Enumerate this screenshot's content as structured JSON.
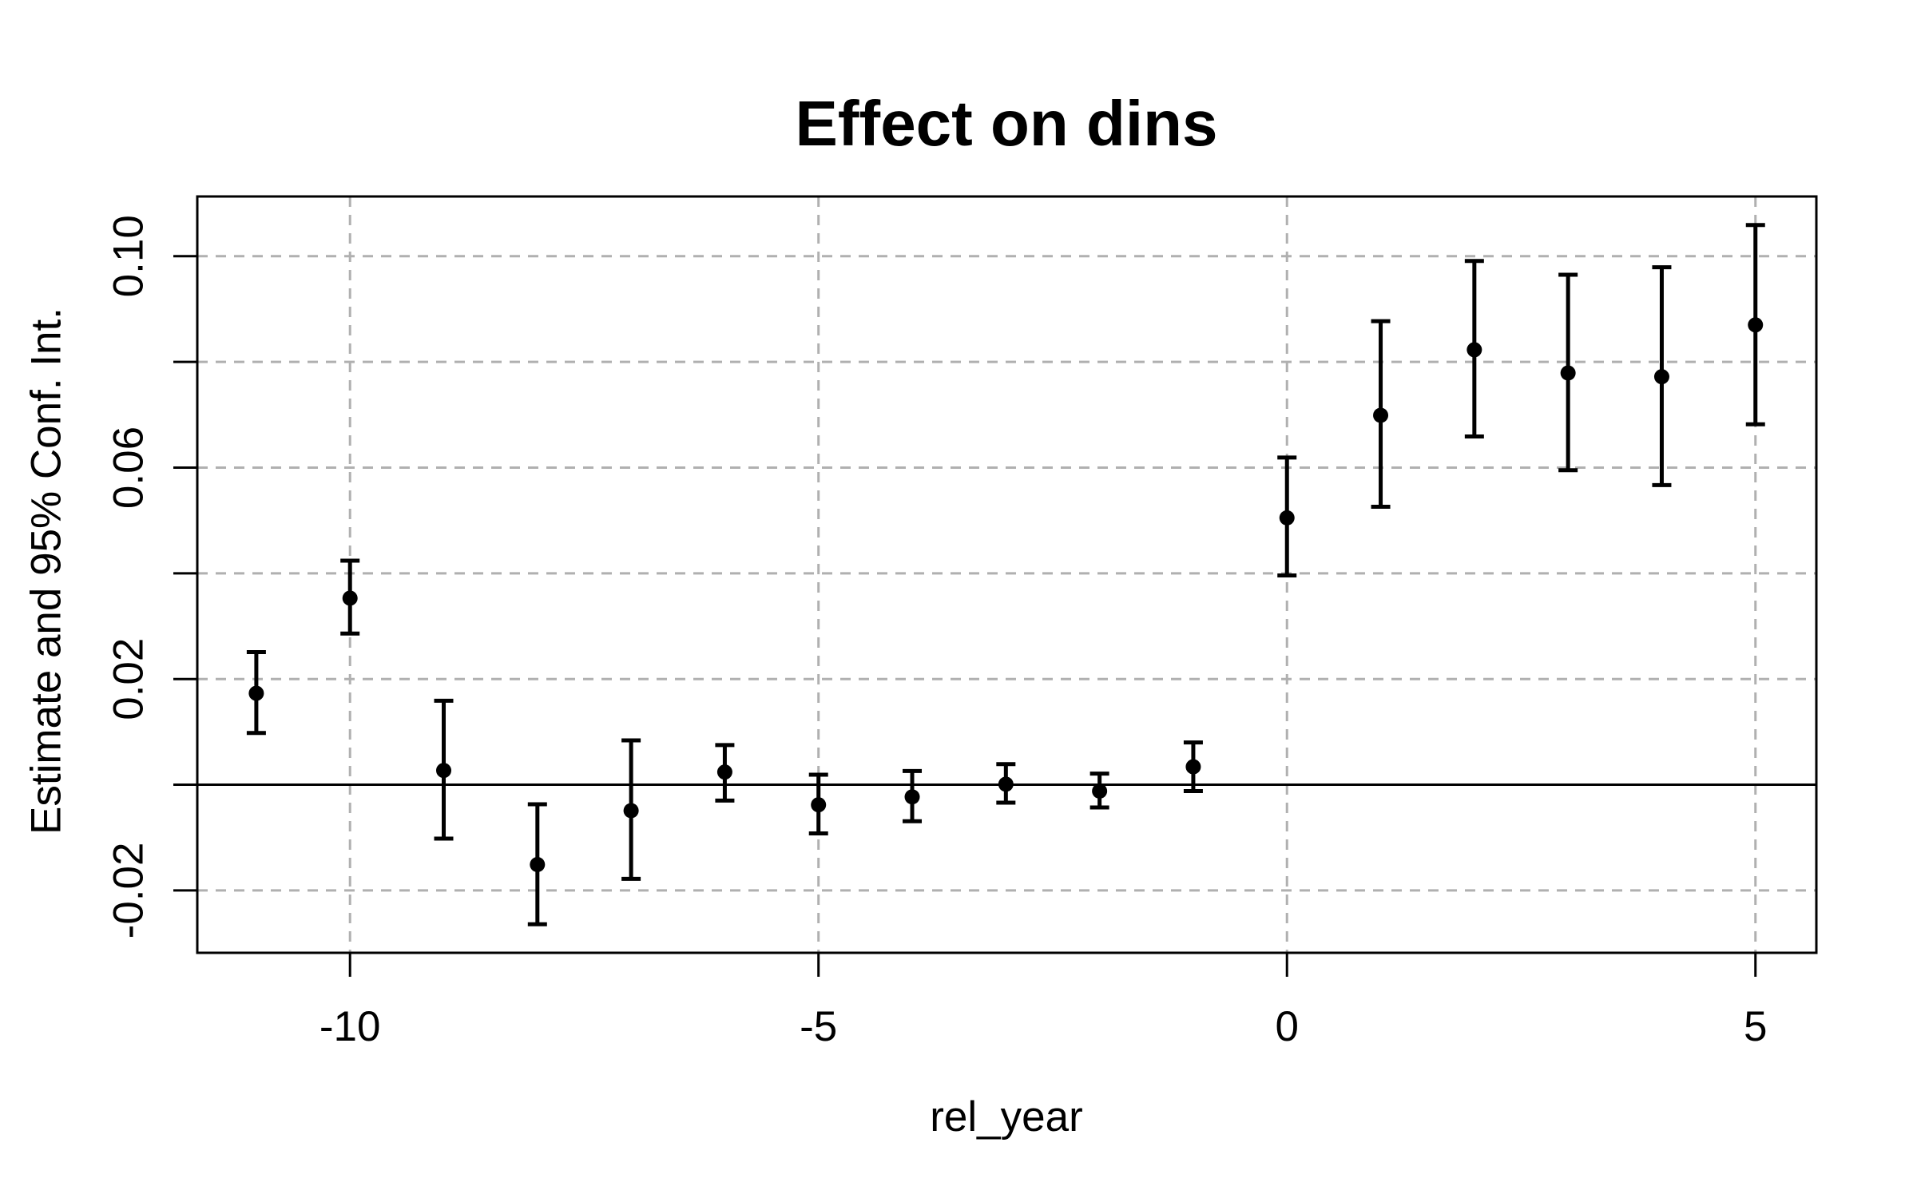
{
  "page": {
    "background": "#ffffff",
    "foreground": "#000000"
  },
  "chart_data": {
    "type": "scatter",
    "subtype": "point-estimates-with-error-bars",
    "title": "Effect on dins",
    "xlabel": "rel_year",
    "ylabel": "Estimate and 95% Conf. Int.",
    "x": [
      -11,
      -10,
      -9,
      -8,
      -7,
      -6,
      -5,
      -4,
      -3,
      -2,
      -1,
      0,
      1,
      2,
      3,
      4,
      5
    ],
    "series": [
      {
        "name": "estimate",
        "values": [
          0.0173,
          0.0353,
          0.0027,
          -0.0151,
          -0.0049,
          0.0024,
          -0.0038,
          -0.0023,
          0.0001,
          -0.0012,
          0.0034,
          0.0505,
          0.0699,
          0.0823,
          0.0779,
          0.0772,
          0.087
        ]
      },
      {
        "name": "ci_low",
        "values": [
          0.0098,
          0.0286,
          -0.0102,
          -0.0264,
          -0.0178,
          -0.003,
          -0.0092,
          -0.0069,
          -0.0034,
          -0.0043,
          -0.0012,
          0.0396,
          0.0526,
          0.0659,
          0.0595,
          0.0567,
          0.0682
        ]
      },
      {
        "name": "ci_high",
        "values": [
          0.0251,
          0.0424,
          0.0159,
          -0.0037,
          0.0084,
          0.0075,
          0.0019,
          0.0026,
          0.0039,
          0.0021,
          0.008,
          0.0619,
          0.0877,
          0.0991,
          0.0965,
          0.0979,
          0.1059
        ]
      }
    ],
    "xlim": [
      -11.63,
      5.65
    ],
    "ylim": [
      -0.0318,
      0.1113
    ],
    "x_ticks": [
      {
        "value": -10,
        "label": "-10"
      },
      {
        "value": -5,
        "label": "-5"
      },
      {
        "value": 0,
        "label": "0"
      },
      {
        "value": 5,
        "label": "5"
      }
    ],
    "y_ticks": [
      {
        "value": -0.02,
        "label": "-0.02"
      },
      {
        "value": 0.0,
        "label": ""
      },
      {
        "value": 0.02,
        "label": "0.02"
      },
      {
        "value": 0.04,
        "label": ""
      },
      {
        "value": 0.06,
        "label": "0.06"
      },
      {
        "value": 0.08,
        "label": ""
      },
      {
        "value": 0.1,
        "label": "0.10"
      }
    ],
    "h_gridlines": [
      -0.02,
      0.0,
      0.02,
      0.04,
      0.06,
      0.08,
      0.1
    ],
    "v_gridlines": [
      -10,
      -5,
      0,
      5
    ],
    "reference_hline": 0,
    "grid_on": true,
    "legend_position": "none",
    "grid_color": "#b0b0b0",
    "point_color": "#000000",
    "line_color": "#000000"
  }
}
